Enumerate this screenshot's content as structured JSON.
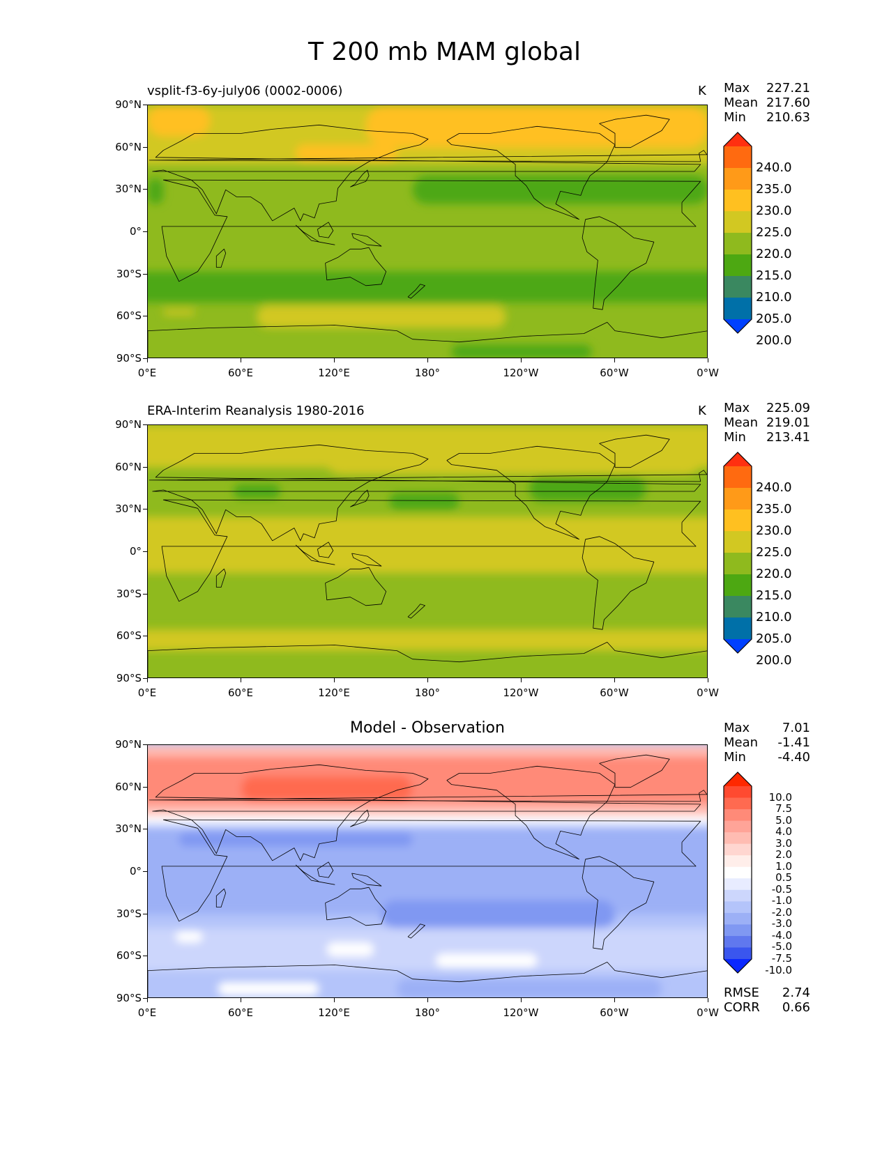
{
  "title": "T 200 mb MAM global",
  "lat_ticks": [
    "90°N",
    "60°N",
    "30°N",
    "0°",
    "30°S",
    "60°S",
    "90°S"
  ],
  "lon_ticks": [
    "0°E",
    "60°E",
    "120°E",
    "180°",
    "120°W",
    "60°W",
    "0°W"
  ],
  "panels": [
    {
      "left_title": "vsplit-f3-6y-july06 (0002-0006)",
      "center_title": "",
      "units": "K",
      "stats": [
        {
          "label": "Max",
          "value": "227.21"
        },
        {
          "label": "Mean",
          "value": "217.60"
        },
        {
          "label": "Min",
          "value": "210.63"
        }
      ],
      "colorbar": {
        "labels": [
          "240.0",
          "235.0",
          "230.0",
          "225.0",
          "220.0",
          "215.0",
          "210.0",
          "205.0",
          "200.0"
        ],
        "colors": [
          "#ff3010",
          "#ff6a10",
          "#ff9a18",
          "#ffc020",
          "#d2c822",
          "#8fba1e",
          "#4da812",
          "#3a8860",
          "#0070a8",
          "#0040ff"
        ]
      },
      "extra_stats": []
    },
    {
      "left_title": "ERA-Interim Reanalysis 1980-2016",
      "center_title": "",
      "units": "K",
      "stats": [
        {
          "label": "Max",
          "value": "225.09"
        },
        {
          "label": "Mean",
          "value": "219.01"
        },
        {
          "label": "Min",
          "value": "213.41"
        }
      ],
      "colorbar": {
        "labels": [
          "240.0",
          "235.0",
          "230.0",
          "225.0",
          "220.0",
          "215.0",
          "210.0",
          "205.0",
          "200.0"
        ],
        "colors": [
          "#ff3010",
          "#ff6a10",
          "#ff9a18",
          "#ffc020",
          "#d2c822",
          "#8fba1e",
          "#4da812",
          "#3a8860",
          "#0070a8",
          "#0040ff"
        ]
      },
      "extra_stats": []
    },
    {
      "left_title": "",
      "center_title": "Model - Observation",
      "units": "",
      "stats": [
        {
          "label": "Max",
          "value": "7.01"
        },
        {
          "label": "Mean",
          "value": "-1.41"
        },
        {
          "label": "Min",
          "value": "-4.40"
        }
      ],
      "colorbar": {
        "labels": [
          "10.0",
          "7.5",
          "5.0",
          "4.0",
          "3.0",
          "2.0",
          "1.0",
          "0.5",
          "-0.5",
          "-1.0",
          "-2.0",
          "-3.0",
          "-4.0",
          "-5.0",
          "-7.5",
          "-10.0"
        ],
        "colors": [
          "#ff2800",
          "#ff4a30",
          "#ff6a50",
          "#ff8a78",
          "#ffa498",
          "#ffbcb2",
          "#ffd6d0",
          "#ffeeea",
          "#ffffff",
          "#e8ecff",
          "#ccd6fc",
          "#b4c4fa",
          "#9cb0f6",
          "#8098f2",
          "#6078ee",
          "#3a56ee",
          "#0a28ff"
        ]
      },
      "extra_stats": [
        {
          "label": "RMSE",
          "value": "2.74"
        },
        {
          "label": "CORR",
          "value": "0.66"
        }
      ]
    }
  ],
  "map_fields": [
    {
      "background": "#8fba1e",
      "blobs": [
        {
          "c": "#d2c822",
          "lon": [
            0,
            360
          ],
          "lat": [
            48,
            90
          ]
        },
        {
          "c": "#ffc020",
          "lon": [
            0,
            40
          ],
          "lat": [
            68,
            90
          ]
        },
        {
          "c": "#ffc020",
          "lon": [
            95,
            160
          ],
          "lat": [
            50,
            62
          ]
        },
        {
          "c": "#ffc020",
          "lon": [
            140,
            360
          ],
          "lat": [
            60,
            90
          ]
        },
        {
          "c": "#4da812",
          "lon": [
            0,
            10
          ],
          "lat": [
            20,
            38
          ]
        },
        {
          "c": "#4da812",
          "lon": [
            170,
            360
          ],
          "lat": [
            20,
            40
          ]
        },
        {
          "c": "#4da812",
          "lon": [
            0,
            360
          ],
          "lat": [
            -50,
            -28
          ]
        },
        {
          "c": "#d2c822",
          "lon": [
            10,
            30
          ],
          "lat": [
            -59,
            -55
          ]
        },
        {
          "c": "#d2c822",
          "lon": [
            70,
            230
          ],
          "lat": [
            -68,
            -52
          ]
        },
        {
          "c": "#4da812",
          "lon": [
            195,
            285
          ],
          "lat": [
            -90,
            -80
          ]
        }
      ]
    },
    {
      "background": "#8fba1e",
      "blobs": [
        {
          "c": "#d2c822",
          "lon": [
            0,
            360
          ],
          "lat": [
            60,
            90
          ]
        },
        {
          "c": "#d2c822",
          "lon": [
            110,
            360
          ],
          "lat": [
            55,
            90
          ]
        },
        {
          "c": "#d2c822",
          "lon": [
            0,
            360
          ],
          "lat": [
            -15,
            25
          ]
        },
        {
          "c": "#d2c822",
          "lon": [
            0,
            360
          ],
          "lat": [
            -70,
            -55
          ]
        },
        {
          "c": "#4da812",
          "lon": [
            55,
            85
          ],
          "lat": [
            38,
            48
          ]
        },
        {
          "c": "#4da812",
          "lon": [
            155,
            200
          ],
          "lat": [
            30,
            42
          ]
        },
        {
          "c": "#4da812",
          "lon": [
            245,
            320
          ],
          "lat": [
            36,
            54
          ]
        }
      ]
    },
    {
      "background": "#b4c4fa",
      "blobs": [
        {
          "c": "#ffbcb2",
          "lon": [
            0,
            360
          ],
          "lat": [
            40,
            90
          ]
        },
        {
          "c": "#ff8a78",
          "lon": [
            0,
            360
          ],
          "lat": [
            48,
            82
          ]
        },
        {
          "c": "#ff6a50",
          "lon": [
            60,
            170
          ],
          "lat": [
            50,
            68
          ]
        },
        {
          "c": "#ffffff",
          "lon": [
            0,
            360
          ],
          "lat": [
            34,
            40
          ]
        },
        {
          "c": "#9cb0f6",
          "lon": [
            0,
            360
          ],
          "lat": [
            -30,
            30
          ]
        },
        {
          "c": "#8098f2",
          "lon": [
            20,
            170
          ],
          "lat": [
            18,
            28
          ]
        },
        {
          "c": "#8098f2",
          "lon": [
            150,
            300
          ],
          "lat": [
            -40,
            -20
          ]
        },
        {
          "c": "#ccd6fc",
          "lon": [
            0,
            360
          ],
          "lat": [
            -70,
            -40
          ]
        },
        {
          "c": "#ffffff",
          "lon": [
            18,
            35
          ],
          "lat": [
            -50,
            -42
          ]
        },
        {
          "c": "#ffffff",
          "lon": [
            115,
            145
          ],
          "lat": [
            -60,
            -50
          ]
        },
        {
          "c": "#ffffff",
          "lon": [
            185,
            250
          ],
          "lat": [
            -68,
            -58
          ]
        },
        {
          "c": "#ffffff",
          "lon": [
            45,
            110
          ],
          "lat": [
            -88,
            -78
          ]
        },
        {
          "c": "#9cb0f6",
          "lon": [
            160,
            330
          ],
          "lat": [
            -90,
            -76
          ]
        }
      ]
    }
  ]
}
